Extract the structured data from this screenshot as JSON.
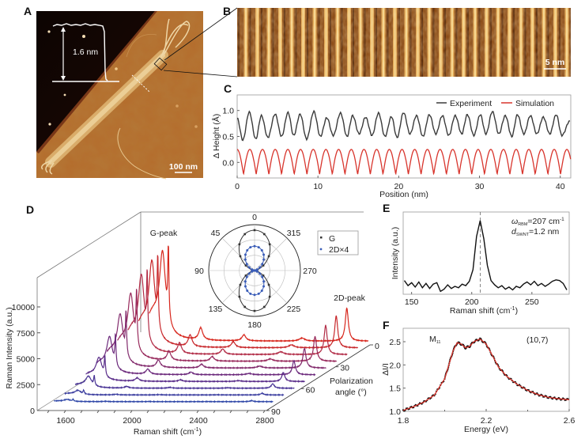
{
  "panels": {
    "a": "A",
    "b": "B",
    "c": "C",
    "d": "D",
    "e": "E",
    "f": "F"
  },
  "panel_a": {
    "height_label": "1.6 nm",
    "scale_bar": "100 nm"
  },
  "panel_b": {
    "scale_bar": "5 nm"
  },
  "colors": {
    "experiment": "#3a3a3a",
    "simulation": "#d8342c",
    "fit": "#d8342c",
    "data": "#111111",
    "d2x4": "#3a5db8",
    "g": "#333333"
  },
  "chart_data": [
    {
      "type": "line",
      "xlabel": "Position (nm)",
      "ylabel": "Δ Height (Å)",
      "xlim": [
        0,
        41.3
      ],
      "ylim": [
        -0.3,
        1.3
      ],
      "xticks": [
        0,
        10,
        20,
        30,
        40
      ],
      "yticks": [
        "0.0",
        "0.5",
        "1.0"
      ],
      "legend": "top-right",
      "series": [
        {
          "name": "Experiment",
          "x": [
            0,
            0.7,
            1.5,
            2.3,
            3.0,
            3.8,
            4.7,
            5.5,
            6.3,
            7.0,
            7.8,
            8.6,
            9.5,
            10.3,
            11.1,
            11.9,
            12.8,
            13.6,
            14.3,
            15.1,
            15.9,
            16.7,
            17.5,
            18.3,
            19.1,
            19.8,
            20.6,
            21.4,
            22.2,
            23.0,
            23.8,
            24.6,
            25.4,
            26.2,
            27.0,
            27.8,
            28.5,
            29.3,
            30.1,
            30.8,
            31.6,
            32.4,
            33.2,
            34.0,
            34.7,
            35.5,
            36.3,
            37.1,
            37.9,
            38.7,
            39.5,
            40.2,
            41.2
          ],
          "y": [
            0.85,
            0.43,
            0.97,
            0.45,
            0.9,
            0.48,
            0.93,
            0.5,
            0.96,
            0.52,
            0.93,
            0.45,
            0.98,
            0.5,
            0.86,
            0.52,
            0.95,
            0.5,
            0.9,
            0.55,
            0.87,
            0.52,
            0.95,
            0.5,
            0.88,
            0.48,
            0.96,
            0.55,
            0.9,
            0.5,
            0.92,
            0.55,
            0.9,
            0.52,
            0.9,
            0.55,
            0.92,
            0.52,
            0.92,
            0.55,
            0.98,
            0.55,
            0.9,
            0.5,
            0.92,
            0.55,
            0.9,
            0.55,
            0.87,
            0.55,
            0.92,
            0.52,
            0.8
          ]
        },
        {
          "name": "Simulation",
          "max": 0.25,
          "min": -0.23,
          "period": 1.57
        }
      ]
    },
    {
      "type": "line",
      "xlabel": {
        "pre": "Raman shift (cm",
        "sup": "-1",
        "post": ")"
      },
      "ylabel": "Raman Intensity (a.u.)",
      "zlabel": [
        "Polarization",
        "angle (°)"
      ],
      "xlim": [
        1450,
        2850
      ],
      "ylim": [
        0,
        12500
      ],
      "xticks": [
        1600,
        2000,
        2400,
        2800
      ],
      "yticks": [
        0,
        2500,
        5000,
        7500,
        10000
      ],
      "zticks": [
        0,
        30,
        60,
        90
      ],
      "annotations": [
        "G-peak",
        "2D-peak"
      ],
      "g_peak_cm": 1595,
      "d2_peak_cm": 2670,
      "angles_deg": [
        0,
        10,
        20,
        30,
        40,
        50,
        60,
        70,
        80,
        90
      ],
      "g_intensity": [
        9700,
        9400,
        8600,
        7300,
        5800,
        4100,
        2600,
        1300,
        500,
        250
      ],
      "d2_intensity": [
        3200,
        3100,
        2830,
        2400,
        1900,
        1350,
        850,
        430,
        160,
        100
      ],
      "series_colors": [
        "#d7261c",
        "#c8282c",
        "#b12a45",
        "#982a5c",
        "#822a6c",
        "#6c2a7c",
        "#5a2e8a",
        "#4a3596",
        "#3c3fa0",
        "#3048a8"
      ]
    },
    {
      "type": "polar",
      "angle_ticks": [
        0,
        45,
        90,
        135,
        180,
        225,
        270,
        315
      ],
      "legend": "right",
      "series": [
        {
          "name": "G",
          "amplitude": 0.88
        },
        {
          "name": "2D×4",
          "amplitude": 0.53
        }
      ]
    },
    {
      "type": "line",
      "xlabel": {
        "pre": "Raman shift (cm",
        "sup": "-1",
        "post": ")"
      },
      "ylabel": "Intensity (a.u.)",
      "xlim": [
        143,
        281
      ],
      "ylim": [
        -0.02,
        1.12
      ],
      "xticks": [
        150,
        200,
        250
      ],
      "marker_line_x": 207,
      "annotations": [
        {
          "symbol": "ω",
          "sub": "RBM",
          "value": "=207 cm",
          "sup": "-1"
        },
        {
          "symbol": "d",
          "sub": "SWNT",
          "value": "=1.2 nm"
        }
      ],
      "x": [
        144,
        147,
        150,
        153,
        156,
        159,
        162,
        165,
        168,
        171,
        174,
        177,
        180,
        183,
        186,
        189,
        192,
        195,
        198,
        201,
        204,
        207,
        210,
        213,
        216,
        219,
        222,
        225,
        228,
        231,
        234,
        237,
        240,
        243,
        246,
        249,
        252,
        255,
        258,
        261,
        264,
        267,
        270,
        273,
        276,
        279
      ],
      "y": [
        0.17,
        0.1,
        0.14,
        0.08,
        0.15,
        0.07,
        0.13,
        0.06,
        0.12,
        0.14,
        0.02,
        0.05,
        0.11,
        0.06,
        0.09,
        0.07,
        0.12,
        0.1,
        0.16,
        0.32,
        0.78,
        1.0,
        0.75,
        0.38,
        0.17,
        0.11,
        0.07,
        0.1,
        0.05,
        0.08,
        0.04,
        0.09,
        0.07,
        0.12,
        0.15,
        0.11,
        0.16,
        0.1,
        0.13,
        0.09,
        0.12,
        0.16,
        0.18,
        0.17,
        0.13,
        0.04
      ]
    },
    {
      "type": "line",
      "xlabel": "Energy (eV)",
      "ylabel": "ΔI/I",
      "xlim": [
        1.8,
        2.6
      ],
      "ylim": [
        1.0,
        2.79
      ],
      "xticks": [
        "1.8",
        "2.2",
        "2.6"
      ],
      "yticks": [
        "1.0",
        "1.5",
        "2.0",
        "2.5"
      ],
      "annotations": [
        {
          "main": "M",
          "sub": "11"
        },
        "(10,7)"
      ],
      "x": [
        1.8,
        1.85,
        1.9,
        1.95,
        2.0,
        2.02,
        2.04,
        2.06,
        2.08,
        2.1,
        2.12,
        2.14,
        2.17,
        2.2,
        2.23,
        2.26,
        2.3,
        2.35,
        2.4,
        2.45,
        2.5,
        2.55,
        2.6
      ],
      "y": [
        1.02,
        1.1,
        1.2,
        1.35,
        1.7,
        2.0,
        2.3,
        2.48,
        2.45,
        2.37,
        2.4,
        2.5,
        2.56,
        2.45,
        2.2,
        1.95,
        1.75,
        1.58,
        1.45,
        1.36,
        1.3,
        1.27,
        1.25
      ]
    }
  ]
}
